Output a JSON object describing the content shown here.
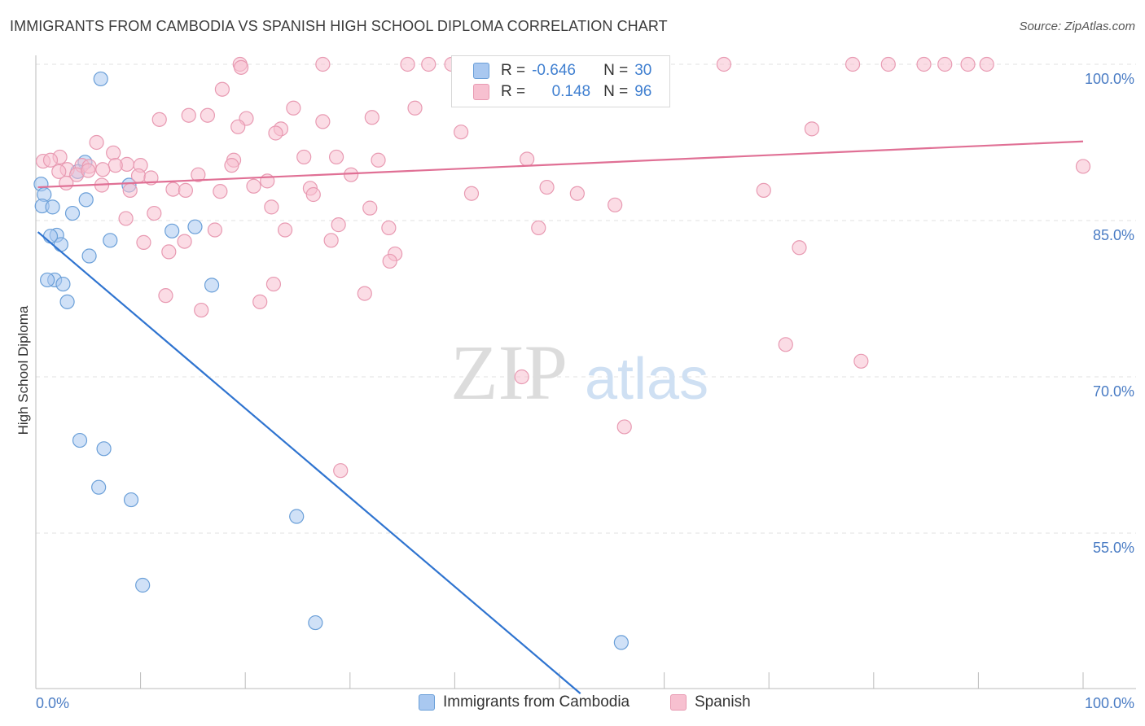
{
  "header": {
    "title": "IMMIGRANTS FROM CAMBODIA VS SPANISH HIGH SCHOOL DIPLOMA CORRELATION CHART",
    "source": "Source: ZipAtlas.com"
  },
  "watermark": {
    "zip": "ZIP",
    "atlas": "atlas"
  },
  "legend": {
    "rows": [
      {
        "r_label": "R =",
        "r_value": "-0.646",
        "n_label": "N =",
        "n_value": "30",
        "color": "#a9c8f0",
        "border": "#6a9fd8"
      },
      {
        "r_label": "R =",
        "r_value": "0.148",
        "n_label": "N =",
        "n_value": "96",
        "color": "#f7c0d0",
        "border": "#e89ab2"
      }
    ]
  },
  "bottom_legend": {
    "items": [
      {
        "label": "Immigrants from Cambodia",
        "color": "#a9c8f0",
        "border": "#6a9fd8"
      },
      {
        "label": "Spanish",
        "color": "#f7c0d0",
        "border": "#e89ab2"
      }
    ]
  },
  "chart_data": {
    "type": "scatter",
    "title": "IMMIGRANTS FROM CAMBODIA VS SPANISH HIGH SCHOOL DIPLOMA CORRELATION CHART",
    "xlabel": "",
    "ylabel": "High School Diploma",
    "xlim": [
      0,
      100
    ],
    "ylim": [
      40,
      100
    ],
    "x_ticks": [
      "0.0%",
      "100.0%"
    ],
    "y_ticks": [
      {
        "value": 100,
        "label": "100.0%"
      },
      {
        "value": 85,
        "label": "85.0%"
      },
      {
        "value": 70,
        "label": "70.0%"
      },
      {
        "value": 55,
        "label": "55.0%"
      }
    ],
    "grid": true,
    "series": [
      {
        "name": "Immigrants from Cambodia",
        "color": "#a9c8f0",
        "stroke": "#6a9fd8",
        "line_color": "#2f74d0",
        "trend": {
          "x0": 0.2,
          "y0": 83.9,
          "x1": 52,
          "y1": 39.6
        },
        "points": [
          [
            6.2,
            98.6
          ],
          [
            0.5,
            88.5
          ],
          [
            0.8,
            87.5
          ],
          [
            0.6,
            86.4
          ],
          [
            1.6,
            86.3
          ],
          [
            3.5,
            85.7
          ],
          [
            4.7,
            90.6
          ],
          [
            4.0,
            89.7
          ],
          [
            8.9,
            88.4
          ],
          [
            4.8,
            87.0
          ],
          [
            2.0,
            83.6
          ],
          [
            2.4,
            82.7
          ],
          [
            1.4,
            83.5
          ],
          [
            7.1,
            83.1
          ],
          [
            5.1,
            81.6
          ],
          [
            13.0,
            84.0
          ],
          [
            15.2,
            84.4
          ],
          [
            1.8,
            79.3
          ],
          [
            2.6,
            78.9
          ],
          [
            1.1,
            79.3
          ],
          [
            16.8,
            78.8
          ],
          [
            3.0,
            77.2
          ],
          [
            4.2,
            63.9
          ],
          [
            6.5,
            63.1
          ],
          [
            6.0,
            59.4
          ],
          [
            9.1,
            58.2
          ],
          [
            24.9,
            56.6
          ],
          [
            10.2,
            50.0
          ],
          [
            26.7,
            46.4
          ],
          [
            55.9,
            44.5
          ]
        ]
      },
      {
        "name": "Spanish",
        "color": "#f7c0d0",
        "stroke": "#e89ab2",
        "line_color": "#e07095",
        "trend": {
          "x0": 0.2,
          "y0": 88.2,
          "x1": 100,
          "y1": 92.6
        },
        "points": [
          [
            19.5,
            100.0
          ],
          [
            27.4,
            100.0
          ],
          [
            35.5,
            100.0
          ],
          [
            37.5,
            100.0
          ],
          [
            39.7,
            100.0
          ],
          [
            56.2,
            100.0
          ],
          [
            56.3,
            100.0
          ],
          [
            65.7,
            100.0
          ],
          [
            78.0,
            100.0
          ],
          [
            81.4,
            100.0
          ],
          [
            84.8,
            100.0
          ],
          [
            86.8,
            100.0
          ],
          [
            89.0,
            100.0
          ],
          [
            90.8,
            100.0
          ],
          [
            19.6,
            99.7
          ],
          [
            17.8,
            97.6
          ],
          [
            36.2,
            95.8
          ],
          [
            24.6,
            95.8
          ],
          [
            14.6,
            95.1
          ],
          [
            16.4,
            95.1
          ],
          [
            11.8,
            94.7
          ],
          [
            20.1,
            94.8
          ],
          [
            32.1,
            94.9
          ],
          [
            27.4,
            94.5
          ],
          [
            19.3,
            94.0
          ],
          [
            23.4,
            93.8
          ],
          [
            22.9,
            93.4
          ],
          [
            40.6,
            93.5
          ],
          [
            74.1,
            93.8
          ],
          [
            5.8,
            92.5
          ],
          [
            7.4,
            91.5
          ],
          [
            2.3,
            91.1
          ],
          [
            0.7,
            90.7
          ],
          [
            1.4,
            90.8
          ],
          [
            4.4,
            90.3
          ],
          [
            8.7,
            90.4
          ],
          [
            7.6,
            90.3
          ],
          [
            5.1,
            90.2
          ],
          [
            3.0,
            89.9
          ],
          [
            10.0,
            90.3
          ],
          [
            18.9,
            90.8
          ],
          [
            18.7,
            90.3
          ],
          [
            25.6,
            91.1
          ],
          [
            28.7,
            91.1
          ],
          [
            32.7,
            90.8
          ],
          [
            46.9,
            90.9
          ],
          [
            2.2,
            89.7
          ],
          [
            3.9,
            89.4
          ],
          [
            5.0,
            89.8
          ],
          [
            6.4,
            89.9
          ],
          [
            9.8,
            89.3
          ],
          [
            15.5,
            89.4
          ],
          [
            30.1,
            89.4
          ],
          [
            2.9,
            88.6
          ],
          [
            6.3,
            88.4
          ],
          [
            11.0,
            89.1
          ],
          [
            13.1,
            88.0
          ],
          [
            14.3,
            87.9
          ],
          [
            17.6,
            87.8
          ],
          [
            20.8,
            88.3
          ],
          [
            22.1,
            88.8
          ],
          [
            26.2,
            88.1
          ],
          [
            9.0,
            87.9
          ],
          [
            26.5,
            87.5
          ],
          [
            41.6,
            87.6
          ],
          [
            48.8,
            88.2
          ],
          [
            51.7,
            87.6
          ],
          [
            69.5,
            87.9
          ],
          [
            100.0,
            90.2
          ],
          [
            22.5,
            86.3
          ],
          [
            31.9,
            86.2
          ],
          [
            55.3,
            86.5
          ],
          [
            8.6,
            85.2
          ],
          [
            11.3,
            85.7
          ],
          [
            33.7,
            84.3
          ],
          [
            28.9,
            84.6
          ],
          [
            17.1,
            84.1
          ],
          [
            23.8,
            84.1
          ],
          [
            10.3,
            82.9
          ],
          [
            14.2,
            83.0
          ],
          [
            28.2,
            83.1
          ],
          [
            48.0,
            84.3
          ],
          [
            72.9,
            82.4
          ],
          [
            12.7,
            82.0
          ],
          [
            34.3,
            81.8
          ],
          [
            33.8,
            81.1
          ],
          [
            22.7,
            78.9
          ],
          [
            31.4,
            78.0
          ],
          [
            12.4,
            77.8
          ],
          [
            21.4,
            77.2
          ],
          [
            15.8,
            76.4
          ],
          [
            71.6,
            73.1
          ],
          [
            78.8,
            71.5
          ],
          [
            46.4,
            70.0
          ],
          [
            56.2,
            65.2
          ],
          [
            29.1,
            61.0
          ]
        ]
      }
    ]
  }
}
